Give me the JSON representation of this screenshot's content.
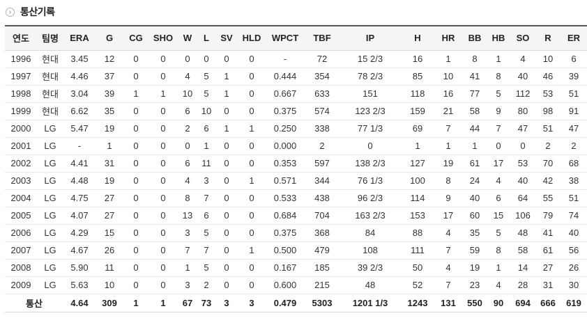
{
  "section": {
    "title": "통산기록",
    "title_icon": "chevron-circle-icon"
  },
  "table": {
    "columns": [
      "연도",
      "팀명",
      "ERA",
      "G",
      "CG",
      "SHO",
      "W",
      "L",
      "SV",
      "HLD",
      "WPCT",
      "TBF",
      "IP",
      "H",
      "HR",
      "BB",
      "HB",
      "SO",
      "R",
      "ER"
    ],
    "rows": [
      [
        "1996",
        "현대",
        "3.45",
        "12",
        "0",
        "0",
        "0",
        "0",
        "0",
        "0",
        "-",
        "72",
        "15 2/3",
        "16",
        "1",
        "8",
        "1",
        "4",
        "10",
        "6"
      ],
      [
        "1997",
        "현대",
        "4.46",
        "37",
        "0",
        "0",
        "4",
        "5",
        "1",
        "0",
        "0.444",
        "354",
        "78 2/3",
        "85",
        "10",
        "41",
        "8",
        "40",
        "46",
        "39"
      ],
      [
        "1998",
        "현대",
        "3.04",
        "39",
        "1",
        "1",
        "10",
        "5",
        "1",
        "0",
        "0.667",
        "633",
        "151",
        "118",
        "16",
        "77",
        "5",
        "112",
        "53",
        "51"
      ],
      [
        "1999",
        "현대",
        "6.62",
        "35",
        "0",
        "0",
        "6",
        "10",
        "0",
        "0",
        "0.375",
        "574",
        "123 2/3",
        "159",
        "21",
        "58",
        "9",
        "80",
        "98",
        "91"
      ],
      [
        "2000",
        "LG",
        "5.47",
        "19",
        "0",
        "0",
        "2",
        "6",
        "1",
        "1",
        "0.250",
        "338",
        "77 1/3",
        "69",
        "7",
        "44",
        "7",
        "47",
        "51",
        "47"
      ],
      [
        "2001",
        "LG",
        "-",
        "1",
        "0",
        "0",
        "0",
        "1",
        "0",
        "0",
        "0.000",
        "2",
        "0",
        "1",
        "1",
        "1",
        "0",
        "0",
        "2",
        "2"
      ],
      [
        "2002",
        "LG",
        "4.41",
        "31",
        "0",
        "0",
        "6",
        "11",
        "0",
        "0",
        "0.353",
        "597",
        "138 2/3",
        "127",
        "19",
        "61",
        "17",
        "53",
        "70",
        "68"
      ],
      [
        "2003",
        "LG",
        "4.48",
        "19",
        "0",
        "0",
        "4",
        "3",
        "0",
        "1",
        "0.571",
        "344",
        "76 1/3",
        "100",
        "8",
        "24",
        "4",
        "40",
        "42",
        "38"
      ],
      [
        "2004",
        "LG",
        "4.75",
        "27",
        "0",
        "0",
        "8",
        "7",
        "0",
        "0",
        "0.533",
        "438",
        "96 2/3",
        "114",
        "9",
        "40",
        "6",
        "64",
        "55",
        "51"
      ],
      [
        "2005",
        "LG",
        "4.07",
        "27",
        "0",
        "0",
        "13",
        "6",
        "0",
        "0",
        "0.684",
        "704",
        "163 2/3",
        "153",
        "17",
        "60",
        "15",
        "106",
        "79",
        "74"
      ],
      [
        "2006",
        "LG",
        "4.29",
        "15",
        "0",
        "0",
        "3",
        "5",
        "0",
        "0",
        "0.375",
        "368",
        "84",
        "88",
        "4",
        "35",
        "5",
        "48",
        "41",
        "40"
      ],
      [
        "2007",
        "LG",
        "4.67",
        "26",
        "0",
        "0",
        "7",
        "7",
        "0",
        "1",
        "0.500",
        "479",
        "108",
        "111",
        "7",
        "59",
        "8",
        "58",
        "61",
        "56"
      ],
      [
        "2008",
        "LG",
        "5.90",
        "11",
        "0",
        "0",
        "1",
        "5",
        "0",
        "0",
        "0.167",
        "185",
        "39 2/3",
        "50",
        "4",
        "19",
        "1",
        "14",
        "27",
        "26"
      ],
      [
        "2009",
        "LG",
        "5.63",
        "10",
        "0",
        "0",
        "3",
        "2",
        "0",
        "0",
        "0.600",
        "215",
        "48",
        "52",
        "7",
        "23",
        "4",
        "28",
        "31",
        "30"
      ]
    ],
    "total_row": {
      "label": "통산",
      "values": [
        "4.64",
        "309",
        "1",
        "1",
        "67",
        "73",
        "3",
        "3",
        "0.479",
        "5303",
        "1201 1/3",
        "1243",
        "131",
        "550",
        "90",
        "694",
        "666",
        "619"
      ]
    }
  },
  "colors": {
    "header_background": "#f5f5f5",
    "table_top_border": "#565656",
    "row_divider": "#e9e9e9",
    "text": "#333333"
  }
}
